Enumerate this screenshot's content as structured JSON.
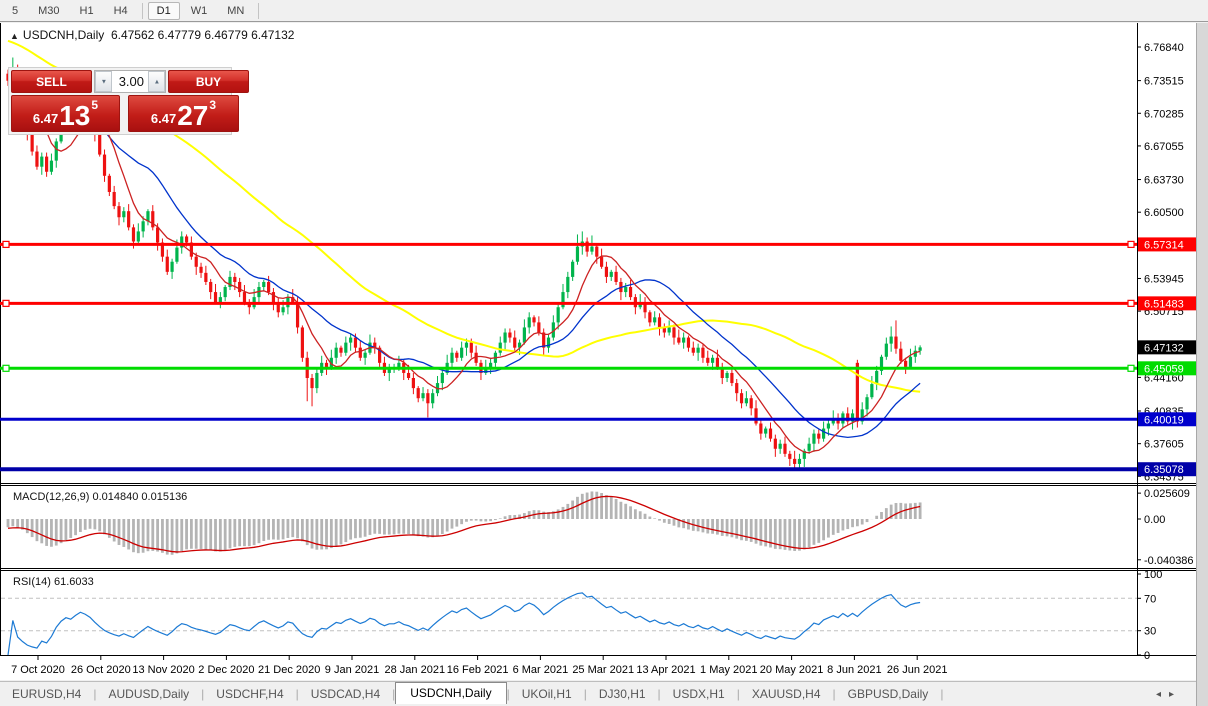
{
  "toolbar": {
    "timeframes": [
      "5",
      "M30",
      "H1",
      "H4",
      "D1",
      "W1",
      "MN"
    ],
    "active": "D1"
  },
  "chart_header": {
    "arrow": "▲",
    "title": "USDCNH,Daily",
    "ohlc": "6.47562 6.47779 6.46779 6.47132"
  },
  "one_click": {
    "sell_label": "SELL",
    "buy_label": "BUY",
    "volume": "3.00",
    "down_arrow": "▼",
    "up_arrow": "▲",
    "sell_small": "6.47",
    "sell_big": "13",
    "sell_sup": "5",
    "buy_small": "6.47",
    "buy_big": "27",
    "buy_sup": "3"
  },
  "tabs": {
    "items": [
      "EURUSD,H4",
      "AUDUSD,Daily",
      "USDCHF,H4",
      "USDCAD,H4",
      "USDCNH,Daily",
      "UKOil,H1",
      "DJ30,H1",
      "USDX,H1",
      "XAUUSD,H4",
      "GBPUSD,Daily"
    ],
    "active": "USDCNH,Daily",
    "left_arrow": "◂",
    "right_arrow": "▸"
  },
  "chart_data": {
    "type": "candlestick",
    "symbol": "USDCNH",
    "timeframe": "Daily",
    "title": "USDCNH,Daily 6.47562 6.47779 6.46779 6.47132",
    "grid": false,
    "ylim": [
      6.337,
      6.791
    ],
    "price_ticks": [
      "6.76840",
      "6.73515",
      "6.70285",
      "6.67055",
      "6.63730",
      "6.60500",
      "6.53945",
      "6.50715",
      "6.44160",
      "6.40835",
      "6.37605",
      "6.34375"
    ],
    "current_price": {
      "value": 6.47132,
      "label": "6.47132",
      "bg": "#000000",
      "fg": "#ffffff"
    },
    "hlines": [
      {
        "value": 6.57314,
        "label": "6.57314",
        "color": "#ff0000",
        "width": 3,
        "handles": true
      },
      {
        "value": 6.51483,
        "label": "6.51483",
        "color": "#ff0000",
        "width": 3,
        "handles": true
      },
      {
        "value": 6.45059,
        "label": "6.45059",
        "color": "#00dc00",
        "width": 3,
        "handles": true
      },
      {
        "value": 6.40019,
        "label": "6.40019",
        "color": "#0000cc",
        "width": 3,
        "handles": false
      },
      {
        "value": 6.35078,
        "label": "6.35078",
        "color": "#0000a8",
        "width": 4,
        "handles": false
      }
    ],
    "date_labels": [
      "7 Oct 2020",
      "26 Oct 2020",
      "13 Nov 2020",
      "2 Dec 2020",
      "21 Dec 2020",
      "9 Jan 2021",
      "28 Jan 2021",
      "16 Feb 2021",
      "6 Mar 2021",
      "25 Mar 2021",
      "13 Apr 2021",
      "1 May 2021",
      "20 May 2021",
      "8 Jun 2021",
      "26 Jun 2021"
    ],
    "colors": {
      "bull": "#00b44c",
      "bear": "#ee1111",
      "ma_fast": "#cc2222",
      "ma_mid": "#0033cc",
      "ma_slow": "#ffff00",
      "macd_hist": "#b4b4b4",
      "macd_signal": "#cc0000",
      "rsi_line": "#1c7ad4",
      "axis_text": "#000000",
      "level_dash": "#c0c0c0"
    },
    "ma_periods": {
      "fast": 8,
      "mid": 20,
      "slow": 55
    },
    "first_open": 6.742,
    "prehistory": [
      6.842,
      6.839,
      6.836,
      6.833,
      6.83,
      6.827,
      6.824,
      6.821,
      6.818,
      6.815,
      6.812,
      6.809,
      6.806,
      6.803,
      6.8,
      6.797,
      6.794,
      6.791,
      6.788,
      6.785,
      6.782,
      6.779,
      6.777,
      6.775,
      6.773,
      6.771,
      6.769,
      6.767,
      6.765,
      6.763,
      6.761,
      6.759,
      6.757,
      6.755,
      6.754,
      6.753,
      6.752,
      6.751,
      6.75,
      6.749,
      6.748,
      6.748,
      6.747,
      6.747,
      6.746,
      6.746,
      6.745,
      6.745,
      6.744,
      6.744,
      6.743,
      6.743,
      6.742,
      6.742,
      6.741
    ],
    "closes": [
      6.735,
      6.748,
      6.722,
      6.705,
      6.682,
      6.665,
      6.65,
      6.66,
      6.645,
      6.656,
      6.675,
      6.69,
      6.7,
      6.695,
      6.706,
      6.716,
      6.71,
      6.7,
      6.682,
      6.662,
      6.641,
      6.625,
      6.611,
      6.6,
      6.606,
      6.59,
      6.576,
      6.586,
      6.596,
      6.606,
      6.59,
      6.575,
      6.561,
      6.546,
      6.556,
      6.57,
      6.581,
      6.575,
      6.561,
      6.551,
      6.545,
      6.536,
      6.526,
      6.516,
      6.521,
      6.531,
      6.541,
      6.536,
      6.526,
      6.516,
      6.511,
      6.521,
      6.531,
      6.536,
      6.526,
      6.516,
      6.506,
      6.511,
      6.521,
      6.516,
      6.491,
      6.461,
      6.441,
      6.431,
      6.446,
      6.456,
      6.451,
      6.461,
      6.471,
      6.466,
      6.476,
      6.481,
      6.471,
      6.461,
      6.466,
      6.476,
      6.471,
      6.456,
      6.446,
      6.451,
      6.451,
      6.456,
      6.446,
      6.441,
      6.431,
      6.421,
      6.426,
      6.416,
      6.426,
      6.436,
      6.446,
      6.456,
      6.466,
      6.461,
      6.471,
      6.476,
      6.466,
      6.456,
      6.446,
      6.451,
      6.456,
      6.466,
      6.476,
      6.486,
      6.481,
      6.471,
      6.476,
      6.491,
      6.501,
      6.496,
      6.486,
      6.471,
      6.481,
      6.496,
      6.511,
      6.526,
      6.541,
      6.556,
      6.571,
      6.576,
      6.566,
      6.571,
      6.561,
      6.551,
      6.541,
      6.546,
      6.536,
      6.526,
      6.531,
      6.521,
      6.511,
      6.516,
      6.506,
      6.496,
      6.501,
      6.491,
      6.486,
      6.491,
      6.481,
      6.476,
      6.481,
      6.471,
      6.466,
      6.471,
      6.461,
      6.456,
      6.461,
      6.451,
      6.441,
      6.446,
      6.436,
      6.426,
      6.416,
      6.421,
      6.411,
      6.396,
      6.386,
      6.391,
      6.381,
      6.371,
      6.376,
      6.366,
      6.361,
      6.356,
      6.361,
      6.369,
      6.376,
      6.386,
      6.381,
      6.391,
      6.396,
      6.401,
      6.396,
      6.406,
      6.398,
      6.406,
      6.398,
      6.41,
      6.422,
      6.435,
      6.448,
      6.462,
      6.475,
      6.482,
      6.47,
      6.458,
      6.452,
      6.462,
      6.468,
      6.4713
    ],
    "overrides": {
      "176": [
        6.456,
        6.459,
        6.392,
        6.398
      ]
    },
    "special_highs": {
      "1": 6.758,
      "118": 6.583,
      "119": 6.586,
      "121": 6.582,
      "183": 6.492,
      "184": 6.498
    },
    "special_lows": {
      "62": 6.418,
      "63": 6.413,
      "87": 6.402,
      "163": 6.3508,
      "165": 6.353
    },
    "wick_high": [
      0.004,
      0.007,
      0.003,
      0.008,
      0.005,
      0.002,
      0.006,
      0.004
    ],
    "wick_low": [
      0.005,
      0.003,
      0.007,
      0.002,
      0.006,
      0.004,
      0.003,
      0.008
    ],
    "macd": {
      "label": "MACD(12,26,9)",
      "values": "0.014840 0.015136",
      "params": [
        12,
        26,
        9
      ],
      "ticks": [
        "0.025609",
        "0.00",
        "-0.040386"
      ]
    },
    "rsi": {
      "label": "RSI(14)",
      "value": "61.6033",
      "period": 14,
      "levels": [
        70,
        30
      ],
      "ticks": [
        "100",
        "70",
        "30",
        "0"
      ]
    }
  }
}
